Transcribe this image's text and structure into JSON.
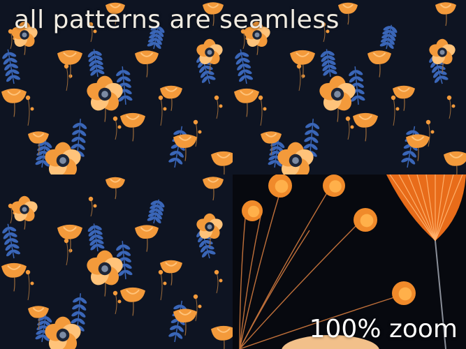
{
  "headline": "all patterns are seamless",
  "zoom_caption": "100% zoom",
  "colors": {
    "background": "#0e1422",
    "flower_orange": "#f39a3b",
    "flower_light": "#ffc37a",
    "flower_center": "#1d2536",
    "leaf_blue": "#3a66b8",
    "stem": "#9a6a3a",
    "caption_text": "#ffffff"
  }
}
